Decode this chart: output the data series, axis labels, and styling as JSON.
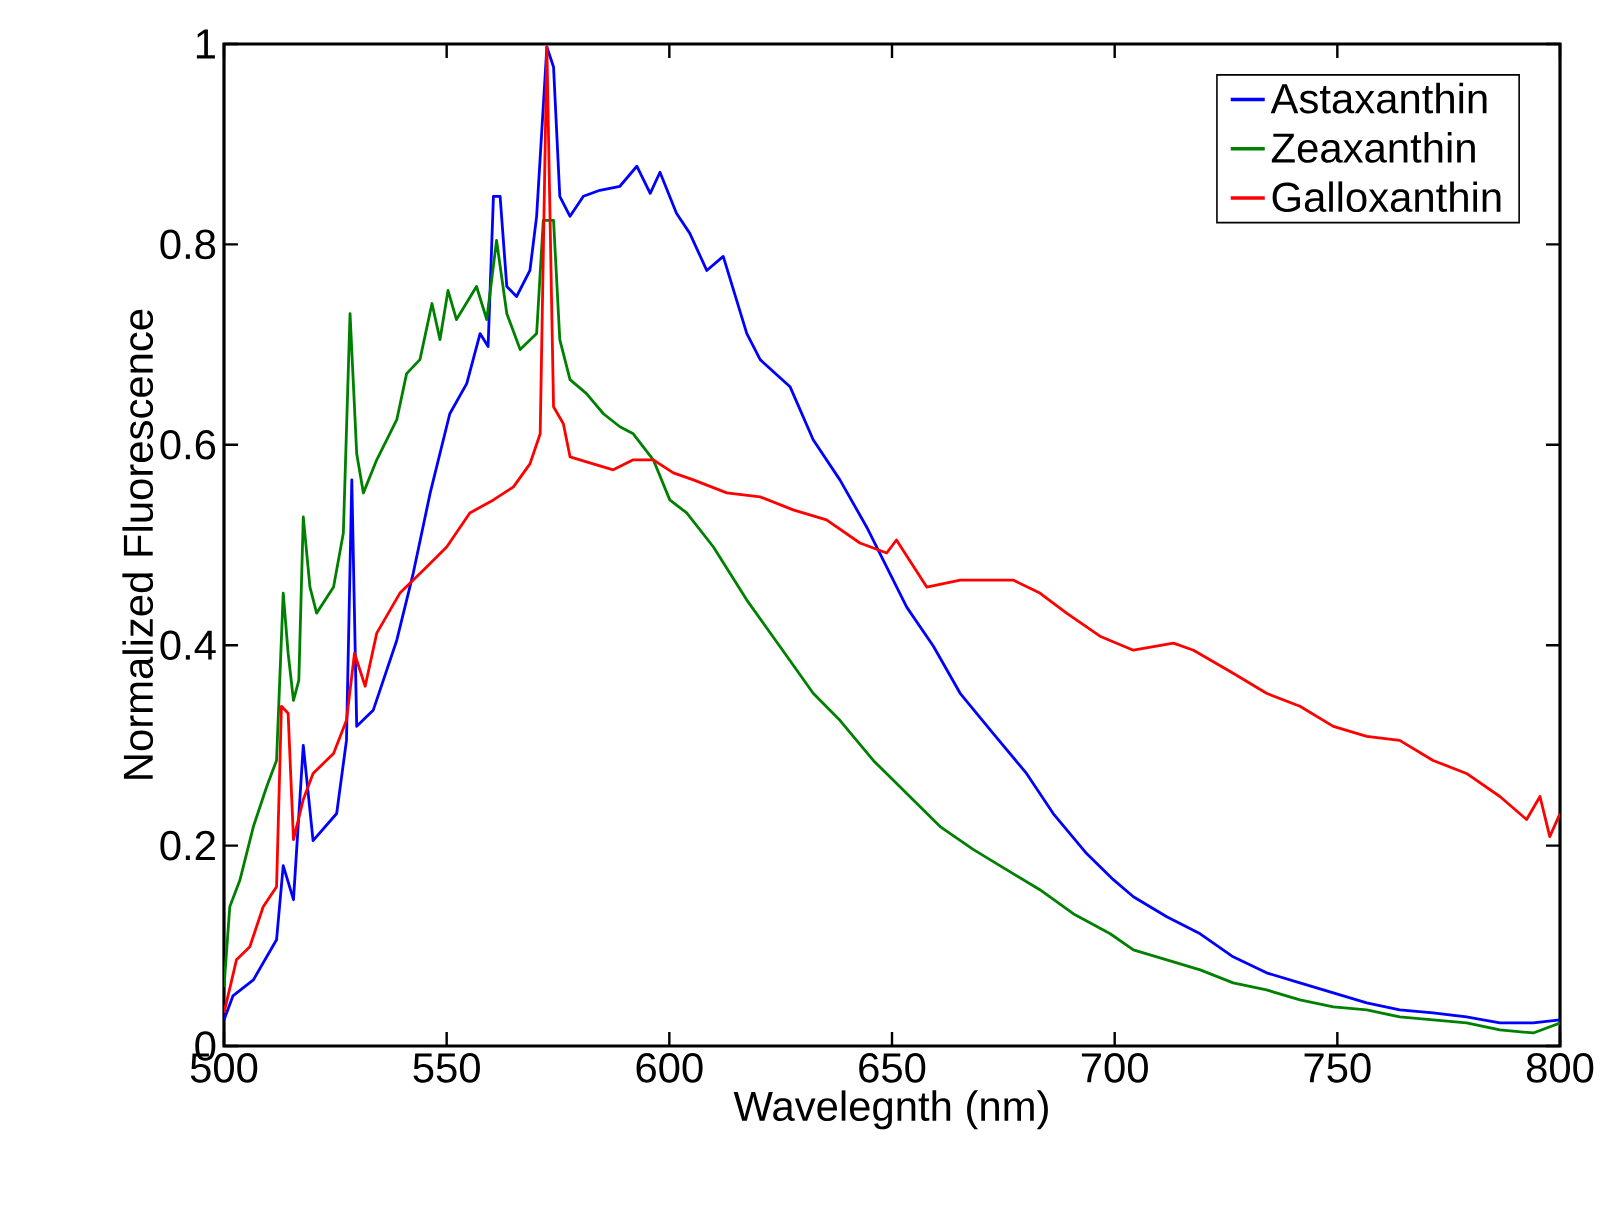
{
  "chart_data": {
    "type": "line",
    "xlabel": "Wavelegnth (nm)",
    "ylabel": "Normalized Fluorescence",
    "xlim": [
      500,
      800
    ],
    "ylim": [
      0,
      1
    ],
    "xticks": [
      500,
      550,
      600,
      650,
      700,
      750,
      800
    ],
    "yticks": [
      0,
      0.2,
      0.4,
      0.6,
      0.8,
      1
    ],
    "legend": "top right",
    "series": [
      {
        "name": "Astaxanthin",
        "color": "#0000ff",
        "x": [
          500,
          502,
          506.6,
          511.8,
          513.3,
          515.6,
          517.8,
          520,
          525.3,
          527.5,
          528.7,
          529.8,
          533.5,
          538.8,
          542.5,
          546.3,
          550.7,
          554.5,
          557.5,
          559.3,
          560.5,
          562,
          563.5,
          565.7,
          568.7,
          570.2,
          572.5,
          574,
          575.4,
          577.7,
          580.7,
          584.4,
          588.9,
          592.7,
          595.7,
          597.9,
          601.6,
          604.6,
          608.4,
          612.1,
          617.4,
          620.4,
          627.1,
          632.3,
          638.3,
          644.3,
          648.8,
          653.3,
          659.3,
          665.3,
          672.7,
          680.2,
          686.2,
          693.7,
          699.7,
          704.2,
          711.7,
          719.2,
          726.6,
          734.1,
          741.6,
          749.1,
          756.6,
          764,
          771.5,
          779,
          786.5,
          794,
          800
        ],
        "values": [
          0.026,
          0.05,
          0.066,
          0.106,
          0.18,
          0.146,
          0.3,
          0.205,
          0.232,
          0.305,
          0.565,
          0.319,
          0.335,
          0.405,
          0.472,
          0.552,
          0.631,
          0.661,
          0.711,
          0.698,
          0.848,
          0.848,
          0.758,
          0.748,
          0.774,
          0.828,
          0.997,
          0.977,
          0.848,
          0.828,
          0.848,
          0.854,
          0.858,
          0.878,
          0.851,
          0.872,
          0.831,
          0.811,
          0.774,
          0.788,
          0.711,
          0.685,
          0.658,
          0.605,
          0.565,
          0.518,
          0.478,
          0.438,
          0.399,
          0.352,
          0.312,
          0.272,
          0.232,
          0.192,
          0.166,
          0.149,
          0.129,
          0.112,
          0.089,
          0.073,
          0.063,
          0.053,
          0.043,
          0.036,
          0.033,
          0.029,
          0.023,
          0.023,
          0.026
        ]
      },
      {
        "name": "Zeaxanthin",
        "color": "#008000",
        "x": [
          500,
          501.3,
          503.6,
          506.6,
          509.6,
          511.8,
          513.3,
          514.4,
          515.6,
          516.8,
          517.8,
          519.3,
          520.8,
          524.6,
          526.8,
          528.3,
          529.8,
          531.3,
          534.3,
          538.8,
          541,
          544,
          546.7,
          548.5,
          550.3,
          552.2,
          556.7,
          559,
          561.2,
          563.5,
          566.5,
          570.2,
          571.7,
          572.5,
          574,
          575.4,
          577.7,
          581.4,
          585.2,
          588.9,
          591.9,
          596.4,
          600.1,
          603.9,
          609.9,
          617.4,
          624.8,
          632.3,
          638.3,
          645.8,
          653.3,
          660.8,
          668.3,
          675.7,
          683.2,
          690.7,
          699,
          704.2,
          711.7,
          719.2,
          726.6,
          734.1,
          741.6,
          749.1,
          756.6,
          764,
          771.5,
          779,
          786.5,
          794,
          800
        ],
        "values": [
          0.059,
          0.139,
          0.166,
          0.219,
          0.259,
          0.285,
          0.452,
          0.392,
          0.345,
          0.365,
          0.528,
          0.458,
          0.432,
          0.458,
          0.512,
          0.731,
          0.591,
          0.552,
          0.585,
          0.625,
          0.671,
          0.685,
          0.741,
          0.705,
          0.754,
          0.725,
          0.758,
          0.725,
          0.804,
          0.731,
          0.695,
          0.711,
          0.824,
          null,
          0.824,
          0.705,
          0.665,
          0.651,
          0.631,
          0.618,
          0.611,
          0.585,
          0.545,
          0.532,
          0.498,
          0.445,
          0.399,
          0.352,
          0.325,
          0.285,
          0.252,
          0.219,
          0.196,
          0.176,
          0.156,
          0.132,
          0.112,
          0.096,
          0.086,
          0.076,
          0.063,
          0.056,
          0.046,
          0.039,
          0.036,
          0.029,
          0.026,
          0.023,
          0.016,
          0.013,
          0.023
        ]
      },
      {
        "name": "Galloxanthin",
        "color": "#ff0000",
        "x": [
          500,
          502.8,
          505.8,
          508.8,
          511.8,
          512.9,
          514.4,
          515.6,
          517.8,
          520,
          524.6,
          527.5,
          529.3,
          531.7,
          534.3,
          539.5,
          545.5,
          550,
          555.2,
          560.5,
          565,
          568.7,
          571,
          572.5,
          574,
          576.2,
          577.7,
          582.9,
          587.4,
          591.9,
          596.4,
          600.9,
          605.4,
          612.9,
          620.4,
          627.8,
          635.3,
          642.8,
          648.8,
          651,
          657.8,
          665.3,
          671.3,
          677.2,
          683.2,
          689.2,
          696.7,
          704.2,
          713.2,
          717.7,
          726.6,
          734.1,
          741.6,
          749.1,
          756.6,
          764,
          771.5,
          779,
          786.5,
          792.5,
          795.5,
          797.7,
          800
        ],
        "values": [
          0.033,
          0.086,
          0.099,
          0.139,
          0.159,
          0.339,
          0.332,
          0.206,
          0.246,
          0.272,
          0.292,
          0.325,
          0.392,
          0.359,
          0.412,
          0.452,
          0.478,
          0.498,
          0.532,
          0.545,
          0.558,
          0.581,
          0.611,
          0.997,
          0.638,
          0.621,
          0.588,
          0.581,
          0.575,
          0.585,
          0.585,
          0.572,
          0.565,
          0.552,
          0.548,
          0.535,
          0.525,
          0.502,
          0.492,
          0.505,
          0.458,
          0.465,
          0.465,
          0.465,
          0.452,
          0.432,
          0.409,
          0.395,
          0.402,
          0.395,
          0.372,
          0.352,
          0.339,
          0.319,
          0.309,
          0.305,
          0.285,
          0.272,
          0.249,
          0.226,
          0.249,
          0.209,
          0.232
        ]
      }
    ]
  }
}
